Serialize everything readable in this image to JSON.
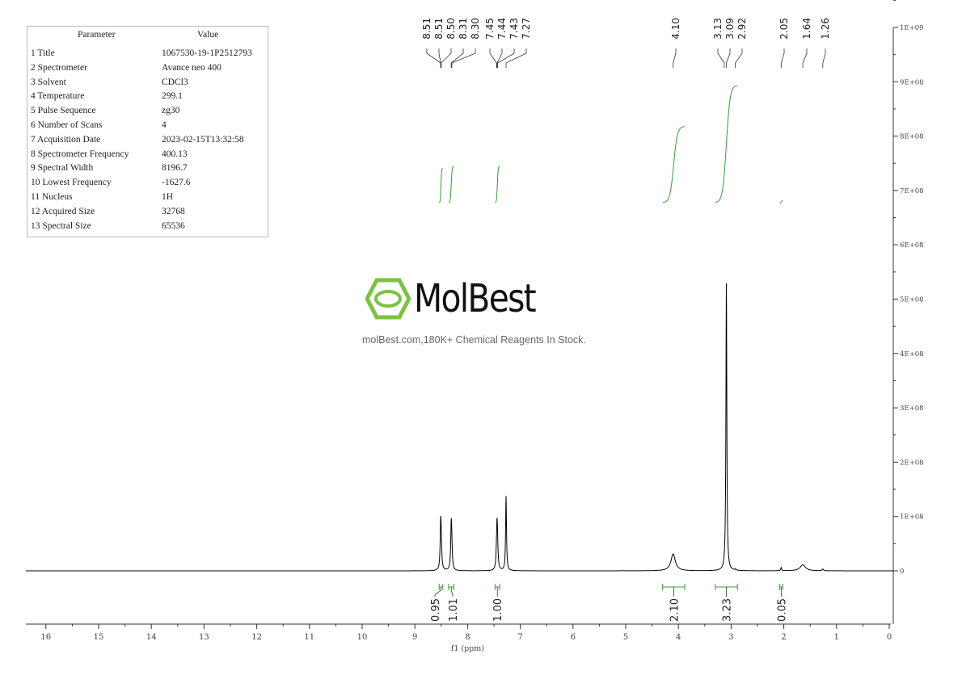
{
  "parameters": {
    "header": [
      "Parameter",
      "Value"
    ],
    "rows": [
      [
        "1 Title",
        "1067530-19-1P2512793"
      ],
      [
        "2 Spectrometer",
        "Avance neo 400"
      ],
      [
        "3 Solvent",
        "CDCl3"
      ],
      [
        "4 Temperature",
        "299.1"
      ],
      [
        "5 Pulse Sequence",
        "zg30"
      ],
      [
        "6 Number of Scans",
        "4"
      ],
      [
        "7 Acquisition Date",
        "2023-02-15T13:32:58"
      ],
      [
        "8 Spectrometer Frequency",
        "400.13"
      ],
      [
        "9 Spectral Width",
        "8196.7"
      ],
      [
        "10 Lowest Frequency",
        "-1627.6"
      ],
      [
        "11 Nucleus",
        "1H"
      ],
      [
        "12 Acquired Size",
        "32768"
      ],
      [
        "13 Spectral Size",
        "65536"
      ]
    ]
  },
  "watermark": {
    "brand": "MolBest",
    "tagline": "molBest.com,180K+ Chemical Reagents In Stock.",
    "color": "#7cc242"
  },
  "chart_data": {
    "type": "line",
    "xlabel": "f1 (ppm)",
    "xlim": [
      16.5,
      0
    ],
    "xticks": [
      16,
      15,
      14,
      13,
      12,
      11,
      10,
      9,
      8,
      7,
      6,
      5,
      4,
      3,
      2,
      1,
      0
    ],
    "ylim": [
      -100000000.0,
      1000000000.0
    ],
    "yticks": [
      0,
      100000000.0,
      200000000.0,
      300000000.0,
      400000000.0,
      500000000.0,
      600000000.0,
      700000000.0,
      800000000.0,
      900000000.0,
      1000000000.0
    ],
    "ytick_labels": [
      "0",
      "1E+08",
      "2E+08",
      "3E+08",
      "4E+08",
      "5E+08",
      "6E+08",
      "7E+08",
      "8E+08",
      "9E+08",
      "1E+09"
    ],
    "line_color": "#000000",
    "integral_color": "#3a9a3a",
    "peaks": [
      {
        "ppm": 8.51,
        "height": 82000000.0,
        "width": 0.012
      },
      {
        "ppm": 8.5,
        "height": 30000000.0,
        "width": 0.012
      },
      {
        "ppm": 8.31,
        "height": 78000000.0,
        "width": 0.012
      },
      {
        "ppm": 8.3,
        "height": 30000000.0,
        "width": 0.012
      },
      {
        "ppm": 7.44,
        "height": 74000000.0,
        "width": 0.012
      },
      {
        "ppm": 7.45,
        "height": 20000000.0,
        "width": 0.012
      },
      {
        "ppm": 7.43,
        "height": 20000000.0,
        "width": 0.012
      },
      {
        "ppm": 7.27,
        "height": 137000000.0,
        "width": 0.01
      },
      {
        "ppm": 4.1,
        "height": 31000000.0,
        "width": 0.05
      },
      {
        "ppm": 3.09,
        "height": 530000000.0,
        "width": 0.01
      },
      {
        "ppm": 3.13,
        "height": 2000000.0,
        "width": 0.01
      },
      {
        "ppm": 2.92,
        "height": 2000000.0,
        "width": 0.01
      },
      {
        "ppm": 2.05,
        "height": 6000000.0,
        "width": 0.01
      },
      {
        "ppm": 1.64,
        "height": 11000000.0,
        "width": 0.06
      },
      {
        "ppm": 1.26,
        "height": 3000000.0,
        "width": 0.015
      }
    ],
    "peak_labels": [
      "8.51",
      "8.51",
      "8.50",
      "8.31",
      "8.30",
      "7.45",
      "7.44",
      "7.43",
      "7.27",
      "4.10",
      "3.13",
      "3.09",
      "2.92",
      "2.05",
      "1.64",
      "1.26"
    ],
    "integrals": [
      {
        "from": 8.54,
        "to": 8.47,
        "value": "0.95"
      },
      {
        "from": 8.36,
        "to": 8.26,
        "value": "1.01"
      },
      {
        "from": 7.48,
        "to": 7.39,
        "value": "1.00"
      },
      {
        "from": 4.3,
        "to": 3.88,
        "value": "2.10"
      },
      {
        "from": 3.3,
        "to": 2.88,
        "value": "3.23"
      },
      {
        "from": 2.08,
        "to": 2.02,
        "value": "0.05"
      }
    ]
  }
}
